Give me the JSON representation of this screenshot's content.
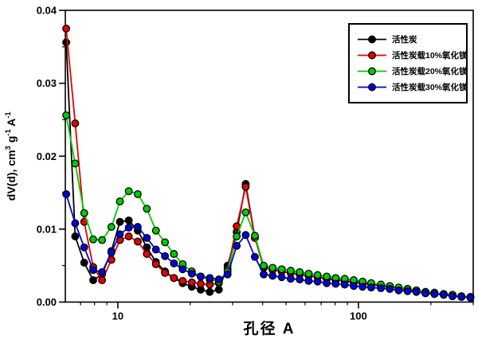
{
  "figure": {
    "background": "#ffffff",
    "frame_color": "#000000"
  },
  "chart_data": {
    "type": "line",
    "title": "",
    "xlabel": "孔径 A",
    "ylabel": "dV(d), cm3 g-1 A-1",
    "ylabel_parts": [
      {
        "t": "dV(d), cm"
      },
      {
        "t": "3",
        "sup": true
      },
      {
        "t": " g"
      },
      {
        "t": "-1",
        "sup": true
      },
      {
        "t": " A"
      },
      {
        "t": "-1",
        "sup": true
      }
    ],
    "xscale": "log",
    "yscale": "linear",
    "xlim": [
      6.05,
      300
    ],
    "ylim": [
      0,
      0.04
    ],
    "x_major_ticks": [
      10,
      100
    ],
    "x_major_tick_labels": [
      "10",
      "100"
    ],
    "x_minor_ticks": [
      7,
      8,
      9,
      20,
      30,
      40,
      50,
      60,
      70,
      80,
      90,
      200,
      300
    ],
    "y_major_ticks": [
      0.0,
      0.01,
      0.02,
      0.03,
      0.04
    ],
    "y_major_tick_labels": [
      "0.00",
      "0.01",
      "0.02",
      "0.03",
      "0.04"
    ],
    "y_minor_ticks": [
      0.005,
      0.015,
      0.025,
      0.035
    ],
    "grid": false,
    "legend_position": "top-right-inside",
    "x": [
      6.1,
      6.65,
      7.25,
      7.9,
      8.6,
      9.4,
      10.2,
      11.1,
      12.1,
      13.2,
      14.4,
      15.7,
      17.1,
      18.6,
      20.3,
      22.1,
      24.1,
      26.3,
      28.6,
      31.2,
      34,
      37.1,
      40.4,
      44,
      48,
      52.3,
      57,
      62.1,
      67.7,
      73.8,
      80.4,
      87.7,
      95.6,
      104,
      113,
      124,
      135,
      147,
      160,
      174,
      190,
      207,
      226,
      246,
      268,
      292
    ],
    "series": [
      {
        "name": "活性炭",
        "color": "#000000",
        "marker": "circle",
        "values": [
          0.0356,
          0.009,
          0.0054,
          0.003,
          0.0038,
          0.007,
          0.011,
          0.0112,
          0.0098,
          0.0075,
          0.0055,
          0.0042,
          0.0033,
          0.0026,
          0.0021,
          0.0017,
          0.0014,
          0.0017,
          0.005,
          0.0096,
          0.0162,
          0.0089,
          0.0047,
          0.0045,
          0.0042,
          0.004,
          0.0038,
          0.0036,
          0.0034,
          0.0032,
          0.003,
          0.0029,
          0.0027,
          0.0026,
          0.0024,
          0.0022,
          0.0021,
          0.0019,
          0.0017,
          0.0015,
          0.0013,
          0.0012,
          0.001,
          0.0009,
          0.0008,
          0.0007
        ]
      },
      {
        "name": "活性炭载10%氧化镁",
        "color": "#e60000",
        "marker": "circle",
        "values": [
          0.0375,
          0.0245,
          0.011,
          0.0048,
          0.003,
          0.0058,
          0.0085,
          0.009,
          0.0083,
          0.0066,
          0.0052,
          0.004,
          0.0033,
          0.0029,
          0.0027,
          0.0025,
          0.0024,
          0.0026,
          0.0045,
          0.0104,
          0.0158,
          0.0088,
          0.0048,
          0.0044,
          0.0042,
          0.004,
          0.0038,
          0.0036,
          0.0034,
          0.0032,
          0.0031,
          0.0029,
          0.0028,
          0.0026,
          0.0025,
          0.0023,
          0.0021,
          0.0019,
          0.0018,
          0.0016,
          0.0014,
          0.0012,
          0.0011,
          0.0009,
          0.0008,
          0.0007
        ]
      },
      {
        "name": "活性炭载20%氧化镁",
        "color": "#00cc00",
        "marker": "circle",
        "values": [
          0.0256,
          0.019,
          0.0122,
          0.0086,
          0.0085,
          0.0103,
          0.0138,
          0.0152,
          0.0148,
          0.0128,
          0.0098,
          0.0082,
          0.0066,
          0.0052,
          0.0042,
          0.0035,
          0.0031,
          0.0028,
          0.0042,
          0.009,
          0.0123,
          0.0091,
          0.005,
          0.0047,
          0.0045,
          0.0043,
          0.0041,
          0.0039,
          0.0037,
          0.0035,
          0.0033,
          0.0032,
          0.003,
          0.0028,
          0.0026,
          0.0024,
          0.0022,
          0.002,
          0.0018,
          0.0016,
          0.0014,
          0.0013,
          0.0011,
          0.001,
          0.0008,
          0.0007
        ]
      },
      {
        "name": "活性炭载30%氧化镁",
        "color": "#0000dd",
        "marker": "circle",
        "values": [
          0.0148,
          0.0108,
          0.0075,
          0.0044,
          0.0041,
          0.0068,
          0.0093,
          0.0102,
          0.0103,
          0.0088,
          0.0072,
          0.0063,
          0.0053,
          0.0045,
          0.0039,
          0.0035,
          0.0033,
          0.0031,
          0.0038,
          0.0077,
          0.0092,
          0.0062,
          0.0038,
          0.0036,
          0.0034,
          0.0032,
          0.0031,
          0.0029,
          0.0028,
          0.0026,
          0.0025,
          0.0024,
          0.0022,
          0.0021,
          0.002,
          0.0019,
          0.0018,
          0.0016,
          0.0015,
          0.0014,
          0.0012,
          0.0011,
          0.001,
          0.0008,
          0.0007,
          0.0006
        ]
      }
    ]
  }
}
